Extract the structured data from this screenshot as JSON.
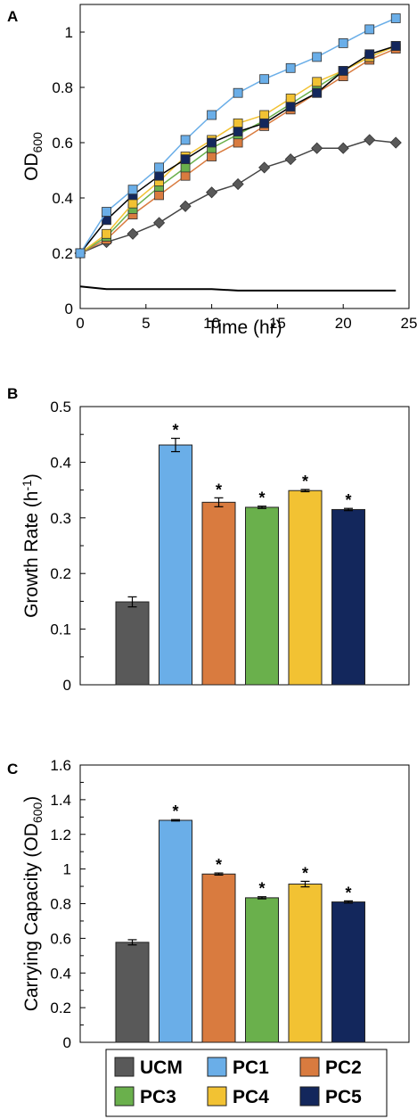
{
  "legend": [
    {
      "name": "UCM",
      "color": "#595959"
    },
    {
      "name": "PC1",
      "color": "#6aaee8"
    },
    {
      "name": "PC2",
      "color": "#d97b3f"
    },
    {
      "name": "PC3",
      "color": "#6ab04c"
    },
    {
      "name": "PC4",
      "color": "#f2c233"
    },
    {
      "name": "PC5",
      "color": "#13275c"
    }
  ],
  "chart_data": [
    {
      "panel": "A",
      "type": "line",
      "xlabel": "Time (hr)",
      "ylabel_main": "OD",
      "ylabel_sub": "600",
      "xlim": [
        0,
        25
      ],
      "ylim": [
        0,
        1.1
      ],
      "xticks": [
        0,
        5,
        10,
        15,
        20,
        25
      ],
      "yticks": [
        0,
        0.2,
        0.4,
        0.6,
        0.8,
        1
      ],
      "x": [
        0,
        2,
        4,
        6,
        8,
        10,
        12,
        14,
        16,
        18,
        20,
        22,
        24
      ],
      "grid": false,
      "series": [
        {
          "name": "UCM",
          "marker": "diamond",
          "values": [
            0.2,
            0.24,
            0.27,
            0.31,
            0.37,
            0.42,
            0.45,
            0.51,
            0.54,
            0.58,
            0.58,
            0.61,
            0.6
          ]
        },
        {
          "name": "PC2",
          "marker": "square",
          "values": [
            0.2,
            0.25,
            0.34,
            0.41,
            0.48,
            0.55,
            0.6,
            0.66,
            0.72,
            0.78,
            0.84,
            0.9,
            0.94
          ]
        },
        {
          "name": "PC3",
          "marker": "square",
          "values": [
            0.2,
            0.26,
            0.36,
            0.44,
            0.51,
            0.58,
            0.63,
            0.68,
            0.74,
            0.8,
            0.86,
            0.91,
            0.95
          ]
        },
        {
          "name": "PC4",
          "marker": "square",
          "values": [
            0.2,
            0.27,
            0.38,
            0.46,
            0.55,
            0.61,
            0.67,
            0.7,
            0.76,
            0.82,
            0.86,
            0.91,
            0.95
          ]
        },
        {
          "name": "PC5",
          "marker": "square",
          "values": [
            0.2,
            0.32,
            0.41,
            0.48,
            0.54,
            0.6,
            0.64,
            0.67,
            0.73,
            0.78,
            0.86,
            0.92,
            0.95
          ]
        },
        {
          "name": "PC1",
          "marker": "square",
          "values": [
            0.2,
            0.35,
            0.43,
            0.51,
            0.61,
            0.7,
            0.78,
            0.83,
            0.87,
            0.91,
            0.96,
            1.01,
            1.05
          ]
        },
        {
          "name": "",
          "marker": "none",
          "values": [
            0.08,
            0.07,
            0.07,
            0.07,
            0.07,
            0.07,
            0.065,
            0.065,
            0.065,
            0.065,
            0.065,
            0.065,
            0.065
          ]
        }
      ]
    },
    {
      "panel": "B",
      "type": "bar",
      "ylabel_main": "Growth Rate (h",
      "ylabel_sup": "-1",
      "ylabel_end": ")",
      "ylim": [
        0,
        0.5
      ],
      "yticks": [
        "0",
        "0.1",
        "0.2",
        "0.3",
        "0.4",
        "0.5"
      ],
      "categories": [
        "UCM",
        "PC1",
        "PC2",
        "PC3",
        "PC4",
        "PC5"
      ],
      "values": [
        0.149,
        0.431,
        0.328,
        0.319,
        0.349,
        0.315
      ],
      "errors": [
        0.009,
        0.012,
        0.008,
        0.002,
        0.002,
        0.002
      ],
      "annotations": [
        "",
        "*",
        "*",
        "*",
        "*",
        "*"
      ],
      "grid": false
    },
    {
      "panel": "C",
      "type": "bar",
      "ylabel_main": "Carrying Capacity (OD",
      "ylabel_sub": "600",
      "ylabel_end": ")",
      "ylim": [
        0,
        1.6
      ],
      "yticks": [
        "0",
        "0.2",
        "0.4",
        "0.6",
        "0.8",
        "1",
        "1.2",
        "1.4",
        "1.6"
      ],
      "categories": [
        "UCM",
        "PC1",
        "PC2",
        "PC3",
        "PC4",
        "PC5"
      ],
      "values": [
        0.577,
        1.281,
        0.971,
        0.834,
        0.913,
        0.81
      ],
      "errors": [
        0.015,
        0.004,
        0.006,
        0.006,
        0.016,
        0.006
      ],
      "annotations": [
        "",
        "*",
        "*",
        "*",
        "*",
        "*"
      ],
      "grid": false
    }
  ]
}
